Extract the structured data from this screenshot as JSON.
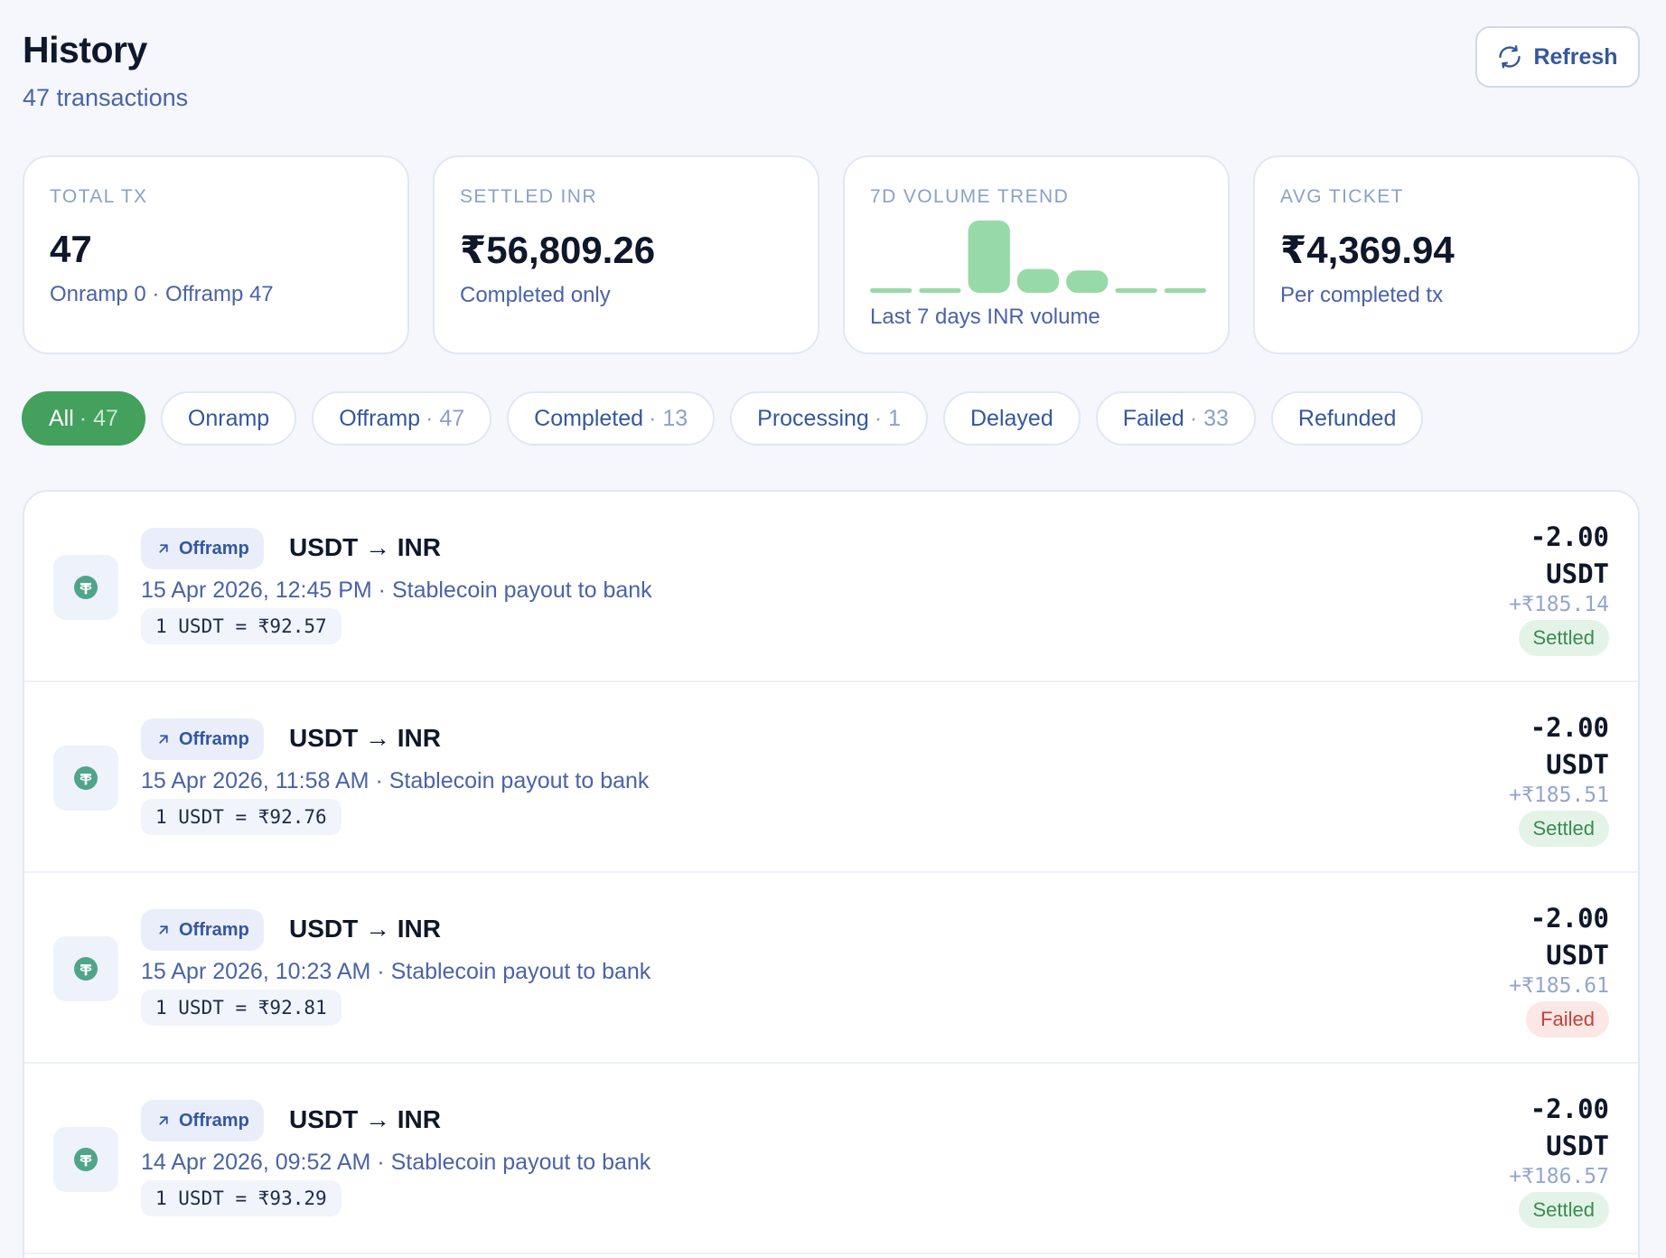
{
  "header": {
    "title": "History",
    "subtitle": "47 transactions",
    "refresh_label": "Refresh"
  },
  "cards": [
    {
      "label": "TOTAL TX",
      "value": "47",
      "hint": "Onramp 0 · Offramp 47"
    },
    {
      "label": "SETTLED INR",
      "value": "₹56,809.26",
      "hint": "Completed only"
    },
    {
      "label": "7D VOLUME TREND",
      "hint": "Last 7 days INR volume"
    },
    {
      "label": "AVG TICKET",
      "value": "₹4,369.94",
      "hint": "Per completed tx"
    }
  ],
  "trend": {
    "relative_volumes": [
      0.05,
      0.06,
      1.0,
      0.33,
      0.31,
      0.05,
      0.05
    ],
    "bar_color": "#98d9a8"
  },
  "filters": [
    {
      "label": "All",
      "count": "· 47",
      "active": true
    },
    {
      "label": "Onramp",
      "count": ""
    },
    {
      "label": "Offramp",
      "count": "· 47"
    },
    {
      "label": "Completed",
      "count": "· 13"
    },
    {
      "label": "Processing",
      "count": "· 1"
    },
    {
      "label": "Delayed",
      "count": ""
    },
    {
      "label": "Failed",
      "count": "· 33"
    },
    {
      "label": "Refunded",
      "count": ""
    }
  ],
  "transactions": [
    {
      "type": "Offramp",
      "pair": "USDT → INR",
      "meta": "15 Apr 2026, 12:45 PM · Stablecoin payout to bank",
      "rate": "1 USDT = ₹92.57",
      "amount": "-2.00",
      "unit": "USDT",
      "inr": "+₹185.14",
      "status": "Settled"
    },
    {
      "type": "Offramp",
      "pair": "USDT → INR",
      "meta": "15 Apr 2026, 11:58 AM · Stablecoin payout to bank",
      "rate": "1 USDT = ₹92.76",
      "amount": "-2.00",
      "unit": "USDT",
      "inr": "+₹185.51",
      "status": "Settled"
    },
    {
      "type": "Offramp",
      "pair": "USDT → INR",
      "meta": "15 Apr 2026, 10:23 AM · Stablecoin payout to bank",
      "rate": "1 USDT = ₹92.81",
      "amount": "-2.00",
      "unit": "USDT",
      "inr": "+₹185.61",
      "status": "Failed"
    },
    {
      "type": "Offramp",
      "pair": "USDT → INR",
      "meta": "14 Apr 2026, 09:52 AM · Stablecoin payout to bank",
      "rate": "1 USDT = ₹93.29",
      "amount": "-2.00",
      "unit": "USDT",
      "inr": "+₹186.57",
      "status": "Settled"
    }
  ],
  "icons": {
    "refresh": "refresh-icon",
    "coin": "tether-coin-icon",
    "offramp": "arrow-up-right-icon"
  },
  "colors": {
    "accent": "#43a05d",
    "settled_bg": "#e3f3e7",
    "failed_bg": "#fbe7e6",
    "tether": "#4fa58a"
  }
}
